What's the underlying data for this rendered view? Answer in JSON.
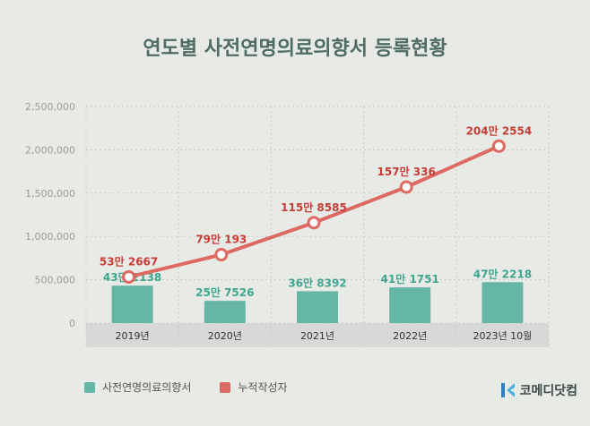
{
  "title": "연도별 사전연명의료의향서 등록현황",
  "colors": {
    "background": "#e8eae6",
    "title": "#4e6b64",
    "bar": "#66b6a6",
    "bar_label": "#3fa58f",
    "line": "#dd6a62",
    "line_label": "#c43d36",
    "axis_band": "#d8d9d6",
    "grid": "#c8cac7"
  },
  "chart_data": {
    "type": "bar+line",
    "categories": [
      "2019년",
      "2020년",
      "2021년",
      "2022년",
      "2023년 10월"
    ],
    "ylim": [
      0,
      2500000
    ],
    "yticks": [
      0,
      500000,
      1000000,
      1500000,
      2000000,
      2500000
    ],
    "ytick_labels": [
      "0",
      "500,000",
      "1,000,000",
      "1,500,000",
      "2,000,000",
      "2,500,000"
    ],
    "series": [
      {
        "name": "사전연명의료의향서",
        "type": "bar",
        "values": [
          432138,
          257526,
          368392,
          411751,
          472218
        ],
        "labels": [
          "43만 2138",
          "25만 7526",
          "36만 8392",
          "41만 1751",
          "47만 2218"
        ]
      },
      {
        "name": "누적작성자",
        "type": "line",
        "values": [
          532667,
          790193,
          1158585,
          1570336,
          2042554
        ],
        "labels": [
          "53만 2667",
          "79만 193",
          "115만 8585",
          "157만 336",
          "204만 2554"
        ]
      }
    ],
    "legend_position": "bottom-left"
  },
  "legend": {
    "bar_label": "사전연명의료의향서",
    "line_label": "누적작성자"
  },
  "logo": {
    "text": "코메디닷컴"
  }
}
